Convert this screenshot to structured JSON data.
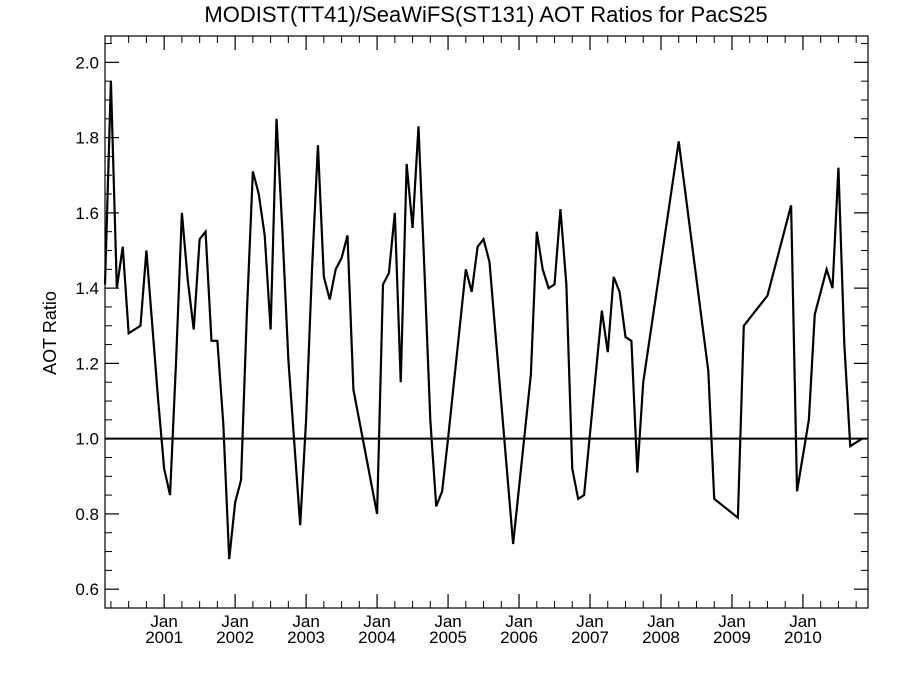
{
  "chart_data": {
    "type": "line",
    "title": "MODIST(TT41)/SeaWiFS(ST131)  AOT Ratios for PacS25",
    "xlabel": "",
    "ylabel": "AOT Ratio",
    "xlim": [
      "2000-03-01",
      "2010-12-01"
    ],
    "ylim": [
      0.55,
      2.07
    ],
    "y_ticks": [
      "0.6",
      "0.8",
      "1.0",
      "1.2",
      "1.4",
      "1.6",
      "1.8",
      "2.0"
    ],
    "x_ticks": [
      {
        "month": "Jan",
        "year": "2001",
        "date": "2001-01"
      },
      {
        "month": "Jan",
        "year": "2002",
        "date": "2002-01"
      },
      {
        "month": "Jan",
        "year": "2003",
        "date": "2003-01"
      },
      {
        "month": "Jan",
        "year": "2004",
        "date": "2004-01"
      },
      {
        "month": "Jan",
        "year": "2005",
        "date": "2005-01"
      },
      {
        "month": "Jan",
        "year": "2006",
        "date": "2006-01"
      },
      {
        "month": "Jan",
        "year": "2007",
        "date": "2007-01"
      },
      {
        "month": "Jan",
        "year": "2008",
        "date": "2008-01"
      },
      {
        "month": "Jan",
        "year": "2009",
        "date": "2009-01"
      },
      {
        "month": "Jan",
        "year": "2010",
        "date": "2010-01"
      }
    ],
    "reference_line": 1.0,
    "grid": false,
    "series": [
      {
        "x": [
          "2000-03",
          "2000-04",
          "2000-05",
          "2000-06",
          "2000-07",
          "2000-09",
          "2000-10",
          "2000-11",
          "2000-12",
          "2001-01",
          "2001-02",
          "2001-03",
          "2001-04",
          "2001-05",
          "2001-06",
          "2001-07",
          "2001-08",
          "2001-09",
          "2001-10",
          "2001-11",
          "2001-12",
          "2002-01",
          "2002-02",
          "2002-03",
          "2002-04",
          "2002-05",
          "2002-06",
          "2002-07",
          "2002-08",
          "2002-09",
          "2002-10",
          "2002-12",
          "2003-01",
          "2003-02",
          "2003-03",
          "2003-04",
          "2003-05",
          "2003-06",
          "2003-07",
          "2003-08",
          "2003-09",
          "2004-01",
          "2004-02",
          "2004-03",
          "2004-04",
          "2004-05",
          "2004-06",
          "2004-07",
          "2004-08",
          "2004-09",
          "2004-10",
          "2004-11",
          "2004-12",
          "2005-01",
          "2005-04",
          "2005-05",
          "2005-06",
          "2005-07",
          "2005-08",
          "2005-12",
          "2006-03",
          "2006-04",
          "2006-05",
          "2006-06",
          "2006-07",
          "2006-08",
          "2006-09",
          "2006-10",
          "2006-11",
          "2006-12",
          "2007-03",
          "2007-04",
          "2007-05",
          "2007-06",
          "2007-07",
          "2007-08",
          "2007-09",
          "2007-10",
          "2008-04",
          "2008-09",
          "2008-10",
          "2009-02",
          "2009-03",
          "2009-07",
          "2009-11",
          "2009-12",
          "2010-02",
          "2010-03",
          "2010-05",
          "2010-06",
          "2010-07",
          "2010-08",
          "2010-09",
          "2010-11"
        ],
        "y": [
          1.41,
          1.95,
          1.4,
          1.51,
          1.28,
          1.3,
          1.5,
          1.3,
          1.1,
          0.92,
          0.85,
          1.2,
          1.6,
          1.42,
          1.29,
          1.53,
          1.55,
          1.26,
          1.26,
          1.04,
          0.68,
          0.83,
          0.89,
          1.34,
          1.71,
          1.65,
          1.54,
          1.29,
          1.85,
          1.55,
          1.21,
          0.77,
          1.05,
          1.45,
          1.78,
          1.43,
          1.37,
          1.45,
          1.48,
          1.54,
          1.13,
          0.8,
          1.41,
          1.44,
          1.6,
          1.15,
          1.73,
          1.56,
          1.83,
          1.45,
          1.05,
          0.82,
          0.86,
          1.0,
          1.45,
          1.39,
          1.51,
          1.53,
          1.47,
          0.72,
          1.17,
          1.55,
          1.45,
          1.4,
          1.41,
          1.61,
          1.41,
          0.92,
          0.84,
          0.85,
          1.34,
          1.23,
          1.43,
          1.39,
          1.27,
          1.26,
          0.91,
          1.15,
          1.79,
          1.18,
          0.84,
          0.79,
          1.3,
          1.38,
          1.62,
          0.86,
          1.05,
          1.33,
          1.45,
          1.4,
          1.72,
          1.25,
          0.98,
          1.0
        ]
      }
    ]
  }
}
